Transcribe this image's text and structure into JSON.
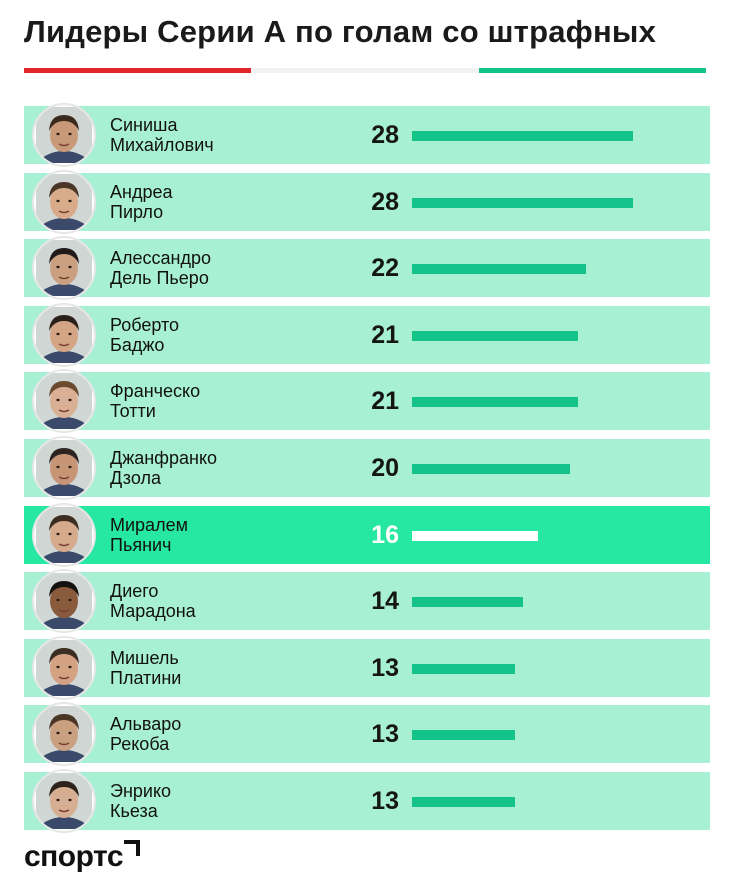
{
  "title": "Лидеры Серии А по голам со штрафных",
  "flag_colors": [
    "#e3262b",
    "#f2f2f2",
    "#14c389"
  ],
  "colors": {
    "row": "#a7f0d4",
    "row_highlight": "#27e8a3",
    "bar": "#14c389",
    "bar_highlight": "#ffffff"
  },
  "chart_data": {
    "type": "bar",
    "orientation": "horizontal",
    "categories": [
      "Синиша Михайлович",
      "Андреа Пирло",
      "Алессандро Дель Пьеро",
      "Роберто Баджо",
      "Франческо Тотти",
      "Джанфранко Дзола",
      "Миралем Пьянич",
      "Диего Марадона",
      "Мишель Платини",
      "Альваро Рекоба",
      "Энрико Кьеза"
    ],
    "values": [
      28,
      28,
      22,
      21,
      21,
      20,
      16,
      14,
      13,
      13,
      13
    ],
    "highlight": "Миралем Пьянич",
    "xlim": [
      0,
      28
    ],
    "grid": false,
    "legend": "none"
  },
  "players": [
    {
      "first": "Синиша",
      "last": "Михайлович",
      "value": "28",
      "highlight": false
    },
    {
      "first": "Андреа",
      "last": "Пирло",
      "value": "28",
      "highlight": false
    },
    {
      "first": "Алессандро",
      "last": "Дель Пьеро",
      "value": "22",
      "highlight": false
    },
    {
      "first": "Роберто",
      "last": "Баджо",
      "value": "21",
      "highlight": false
    },
    {
      "first": "Франческо",
      "last": "Тотти",
      "value": "21",
      "highlight": false
    },
    {
      "first": "Джанфранко",
      "last": "Дзола",
      "value": "20",
      "highlight": false
    },
    {
      "first": "Миралем",
      "last": "Пьянич",
      "value": "16",
      "highlight": true
    },
    {
      "first": "Диего",
      "last": "Марадона",
      "value": "14",
      "highlight": false
    },
    {
      "first": "Мишель",
      "last": "Платини",
      "value": "13",
      "highlight": false
    },
    {
      "first": "Альваро",
      "last": "Рекоба",
      "value": "13",
      "highlight": false
    },
    {
      "first": "Энрико",
      "last": "Кьеза",
      "value": "13",
      "highlight": false
    }
  ],
  "logo": {
    "text": "спортс"
  }
}
